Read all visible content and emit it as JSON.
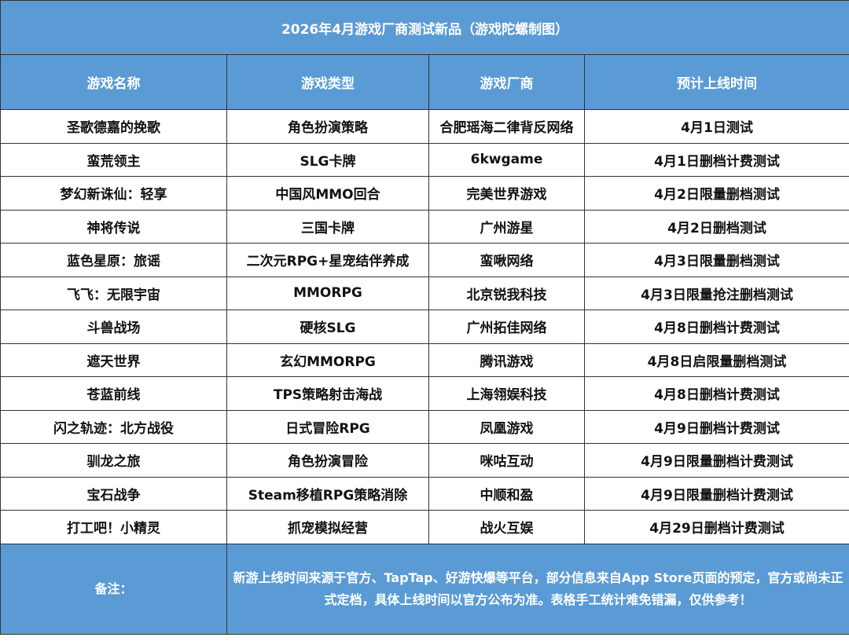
{
  "title": "2026年4月游戏厂商测试新品（游戏陀螺制图）",
  "headers": [
    "游戏名称",
    "游戏类型",
    "游戏厂商",
    "预计上线时间"
  ],
  "rows": [
    [
      "圣歌德嘉的挽歌",
      "角色扮演策略",
      "合肥瑶海二律背反网络",
      "4月1日测试"
    ],
    [
      "蛮荒领主",
      "SLG卡牌",
      "6kwgame",
      "4月1日删档计费测试"
    ],
    [
      "梦幻新诛仙：轻享",
      "中国风MMO回合",
      "完美世界游戏",
      "4月2日限量删档测试"
    ],
    [
      "神将传说",
      "三国卡牌",
      "广州游星",
      "4月2日删档测试"
    ],
    [
      "蓝色星原：旅谣",
      "二次元RPG+星宠结伴养成",
      "蛮啾网络",
      "4月3日限量删档测试"
    ],
    [
      "飞飞：无限宇宙",
      "MMORPG",
      "北京锐我科技",
      "4月3日限量抢注删档测试"
    ],
    [
      "斗兽战场",
      "硬核SLG",
      "广州拓佳网络",
      "4月8日删档计费测试"
    ],
    [
      "遮天世界",
      "玄幻MMORPG",
      "腾讯游戏",
      "4月8日启限量删档测试"
    ],
    [
      "苍蓝前线",
      "TPS策略射击海战",
      "上海翎娱科技",
      "4月8日删档计费测试"
    ],
    [
      "闪之轨迹：北方战役",
      "日式冒险RPG",
      "凤凰游戏",
      "4月9日删档计费测试"
    ],
    [
      "驯龙之旅",
      "角色扮演冒险",
      "咪咕互动",
      "4月9日限量删档计费测试"
    ],
    [
      "宝石战争",
      "Steam移植RPG策略消除",
      "中顺和盈",
      "4月9日限量删档计费测试"
    ],
    [
      "打工吧！小精灵",
      "抓宠模拟经营",
      "战火互娱",
      "4月29日删档计费测试"
    ]
  ],
  "footer": {
    "label": "备注：",
    "note": "新游上线时间来源于官方、TapTap、好游快爆等平台，部分信息来自App Store页面的预定，官方或尚未正式定档，具体上线时间以官方公布为准。表格手工统计难免错漏，仅供参考！"
  },
  "colors": {
    "header_bg": "#5b9bd5",
    "header_text": "#ffffff"
  }
}
